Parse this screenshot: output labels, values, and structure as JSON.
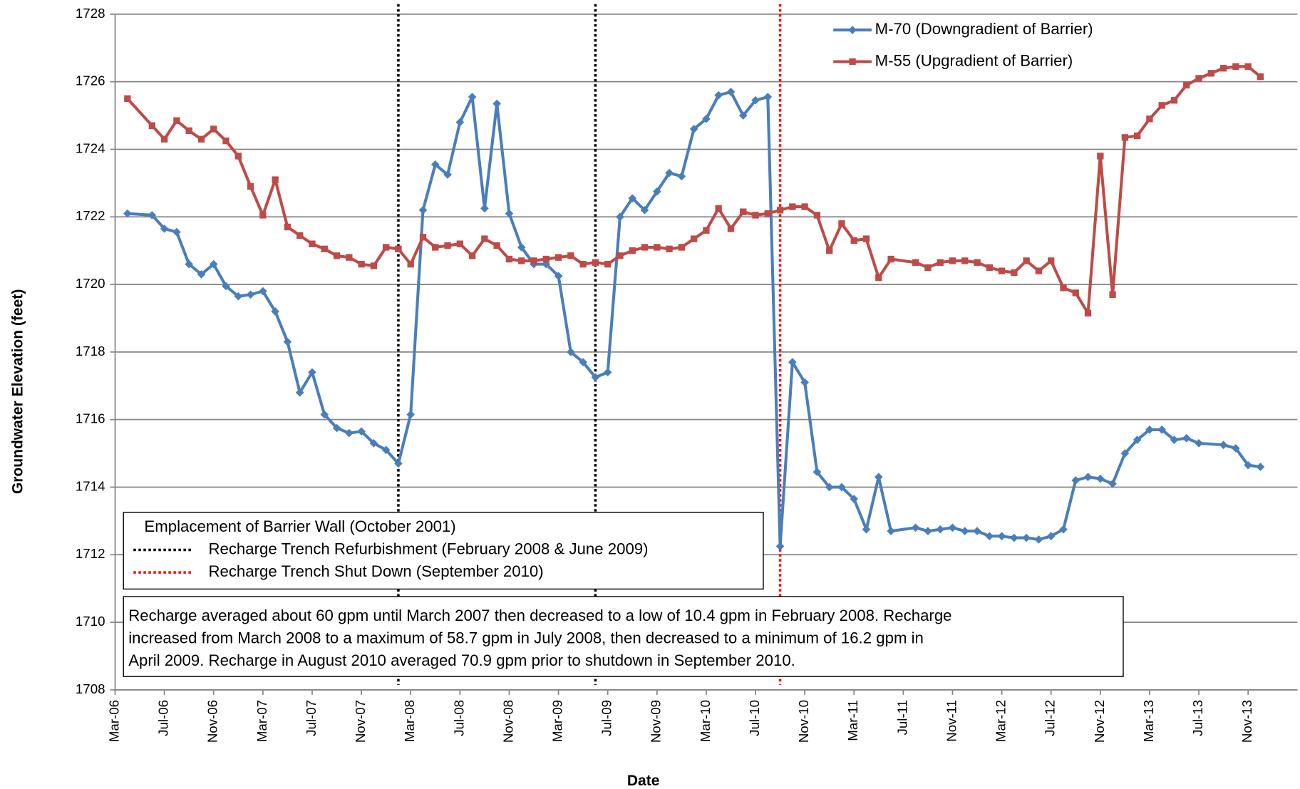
{
  "chart_data": {
    "type": "line",
    "x_label": "Date",
    "y_label": "Groundwater Elevation (feet)",
    "xlim": [
      "2006-03",
      "2014-03"
    ],
    "xticks": [
      {
        "value": "2006-03",
        "label": "Mar-06"
      },
      {
        "value": "2006-07",
        "label": "Jul-06"
      },
      {
        "value": "2006-11",
        "label": "Nov-06"
      },
      {
        "value": "2007-03",
        "label": "Mar-07"
      },
      {
        "value": "2007-07",
        "label": "Jul-07"
      },
      {
        "value": "2007-11",
        "label": "Nov-07"
      },
      {
        "value": "2008-03",
        "label": "Mar-08"
      },
      {
        "value": "2008-07",
        "label": "Jul-08"
      },
      {
        "value": "2008-11",
        "label": "Nov-08"
      },
      {
        "value": "2009-03",
        "label": "Mar-09"
      },
      {
        "value": "2009-07",
        "label": "Jul-09"
      },
      {
        "value": "2009-11",
        "label": "Nov-09"
      },
      {
        "value": "2010-03",
        "label": "Mar-10"
      },
      {
        "value": "2010-07",
        "label": "Jul-10"
      },
      {
        "value": "2010-11",
        "label": "Nov-10"
      },
      {
        "value": "2011-03",
        "label": "Mar-11"
      },
      {
        "value": "2011-07",
        "label": "Jul-11"
      },
      {
        "value": "2011-11",
        "label": "Nov-11"
      },
      {
        "value": "2012-03",
        "label": "Mar-12"
      },
      {
        "value": "2012-07",
        "label": "Jul-12"
      },
      {
        "value": "2012-11",
        "label": "Nov-12"
      },
      {
        "value": "2013-03",
        "label": "Mar-13"
      },
      {
        "value": "2013-07",
        "label": "Jul-13"
      },
      {
        "value": "2013-11",
        "label": "Nov-13"
      }
    ],
    "ylim": [
      1708,
      1728
    ],
    "yticks": [
      1708,
      1710,
      1712,
      1714,
      1716,
      1718,
      1720,
      1722,
      1724,
      1726,
      1728
    ],
    "grid": true,
    "legend": "upper right",
    "series": [
      {
        "name": "M-70 (Downgradient of Barrier)",
        "color": "#4a7ebb",
        "marker": "diamond",
        "x": [
          "2006-04",
          "2006-06",
          "2006-07",
          "2006-08",
          "2006-09",
          "2006-10",
          "2006-11",
          "2006-12",
          "2007-01",
          "2007-02",
          "2007-03",
          "2007-04",
          "2007-05",
          "2007-06",
          "2007-07",
          "2007-08",
          "2007-09",
          "2007-10",
          "2007-11",
          "2007-12",
          "2008-01",
          "2008-02",
          "2008-03",
          "2008-04",
          "2008-05",
          "2008-06",
          "2008-07",
          "2008-08",
          "2008-09",
          "2008-10",
          "2008-11",
          "2008-12",
          "2009-01",
          "2009-02",
          "2009-03",
          "2009-04",
          "2009-05",
          "2009-06",
          "2009-07",
          "2009-08",
          "2009-09",
          "2009-10",
          "2009-11",
          "2009-12",
          "2010-01",
          "2010-02",
          "2010-03",
          "2010-04",
          "2010-05",
          "2010-06",
          "2010-07",
          "2010-08",
          "2010-09",
          "2010-10",
          "2010-11",
          "2010-12",
          "2011-01",
          "2011-02",
          "2011-03",
          "2011-04",
          "2011-05",
          "2011-06",
          "2011-08",
          "2011-09",
          "2011-10",
          "2011-11",
          "2011-12",
          "2012-01",
          "2012-02",
          "2012-03",
          "2012-04",
          "2012-05",
          "2012-06",
          "2012-07",
          "2012-08",
          "2012-09",
          "2012-10",
          "2012-11",
          "2012-12",
          "2013-01",
          "2013-02",
          "2013-03",
          "2013-04",
          "2013-05",
          "2013-06",
          "2013-07",
          "2013-09",
          "2013-10",
          "2013-11",
          "2013-12"
        ],
        "values": [
          1722.1,
          1722.05,
          1721.65,
          1721.55,
          1720.6,
          1720.3,
          1720.6,
          1719.95,
          1719.65,
          1719.7,
          1719.8,
          1719.2,
          1718.3,
          1716.8,
          1717.4,
          1716.15,
          1715.75,
          1715.6,
          1715.65,
          1715.3,
          1715.1,
          1714.7,
          1716.15,
          1722.2,
          1723.55,
          1723.25,
          1724.8,
          1725.55,
          1722.25,
          1725.35,
          1722.1,
          1721.1,
          1720.6,
          1720.6,
          1720.25,
          1718,
          1717.7,
          1717.25,
          1717.4,
          1722,
          1722.55,
          1722.2,
          1722.75,
          1723.3,
          1723.2,
          1724.6,
          1724.9,
          1725.6,
          1725.7,
          1725,
          1725.45,
          1725.55,
          1712.25,
          1717.7,
          1717.1,
          1714.45,
          1714,
          1714,
          1713.65,
          1712.75,
          1714.3,
          1712.7,
          1712.8,
          1712.7,
          1712.75,
          1712.8,
          1712.7,
          1712.7,
          1712.55,
          1712.55,
          1712.5,
          1712.5,
          1712.45,
          1712.55,
          1712.75,
          1714.2,
          1714.3,
          1714.25,
          1714.1,
          1715,
          1715.4,
          1715.7,
          1715.7,
          1715.4,
          1715.45,
          1715.3,
          1715.25,
          1715.15,
          1714.65,
          1714.6
        ]
      },
      {
        "name": "M-55 (Upgradient of Barrier)",
        "color": "#be4b48",
        "marker": "square",
        "x": [
          "2006-04",
          "2006-06",
          "2006-07",
          "2006-08",
          "2006-09",
          "2006-10",
          "2006-11",
          "2006-12",
          "2007-01",
          "2007-02",
          "2007-03",
          "2007-04",
          "2007-05",
          "2007-06",
          "2007-07",
          "2007-08",
          "2007-09",
          "2007-10",
          "2007-11",
          "2007-12",
          "2008-01",
          "2008-02",
          "2008-03",
          "2008-04",
          "2008-05",
          "2008-06",
          "2008-07",
          "2008-08",
          "2008-09",
          "2008-10",
          "2008-11",
          "2008-12",
          "2009-01",
          "2009-02",
          "2009-03",
          "2009-04",
          "2009-05",
          "2009-06",
          "2009-07",
          "2009-08",
          "2009-09",
          "2009-10",
          "2009-11",
          "2009-12",
          "2010-01",
          "2010-02",
          "2010-03",
          "2010-04",
          "2010-05",
          "2010-06",
          "2010-07",
          "2010-08",
          "2010-09",
          "2010-10",
          "2010-11",
          "2010-12",
          "2011-01",
          "2011-02",
          "2011-03",
          "2011-04",
          "2011-05",
          "2011-06",
          "2011-08",
          "2011-09",
          "2011-10",
          "2011-11",
          "2011-12",
          "2012-01",
          "2012-02",
          "2012-03",
          "2012-04",
          "2012-05",
          "2012-06",
          "2012-07",
          "2012-08",
          "2012-09",
          "2012-10",
          "2012-11",
          "2012-12",
          "2013-01",
          "2013-02",
          "2013-03",
          "2013-04",
          "2013-05",
          "2013-06",
          "2013-07",
          "2013-08",
          "2013-09",
          "2013-10",
          "2013-11",
          "2013-12"
        ],
        "values": [
          1725.5,
          1724.7,
          1724.3,
          1724.85,
          1724.55,
          1724.3,
          1724.6,
          1724.25,
          1723.8,
          1722.9,
          1722.05,
          1723.1,
          1721.7,
          1721.45,
          1721.2,
          1721.05,
          1720.85,
          1720.8,
          1720.6,
          1720.55,
          1721.1,
          1721.05,
          1720.6,
          1721.4,
          1721.1,
          1721.15,
          1721.2,
          1720.85,
          1721.35,
          1721.15,
          1720.75,
          1720.7,
          1720.7,
          1720.75,
          1720.8,
          1720.85,
          1720.6,
          1720.65,
          1720.6,
          1720.85,
          1721,
          1721.1,
          1721.1,
          1721.05,
          1721.1,
          1721.35,
          1721.6,
          1722.25,
          1721.65,
          1722.15,
          1722.05,
          1722.1,
          1722.2,
          1722.3,
          1722.3,
          1722.05,
          1721,
          1721.8,
          1721.3,
          1721.35,
          1720.2,
          1720.75,
          1720.65,
          1720.5,
          1720.65,
          1720.7,
          1720.7,
          1720.65,
          1720.5,
          1720.4,
          1720.35,
          1720.7,
          1720.4,
          1720.7,
          1719.9,
          1719.75,
          1719.15,
          1723.8,
          1719.7,
          1724.35,
          1724.4,
          1724.9,
          1725.3,
          1725.45,
          1725.9,
          1726.1,
          1726.25,
          1726.4,
          1726.45,
          1726.45,
          1726.15
        ]
      }
    ],
    "annotations": {
      "barrier_wall": "Emplacement of Barrier Wall (October 2001)",
      "events": [
        {
          "label": "Recharge Trench Refurbishment (February 2008 & June 2009)",
          "color": "#000000",
          "dates": [
            "2008-02",
            "2009-06"
          ]
        },
        {
          "label": "Recharge Trench Shut Down (September 2010)",
          "color": "#ff0000",
          "dates": [
            "2010-09"
          ]
        }
      ],
      "note": [
        "Recharge averaged about 60 gpm until March 2007 then decreased to a low of 10.4 gpm in February 2008. Recharge",
        "increased from March 2008 to a maximum of 58.7 gpm in July 2008, then decreased to a minimum of 16.2 gpm in",
        "April 2009.  Recharge in August 2010 averaged 70.9 gpm prior to shutdown in September 2010."
      ]
    }
  }
}
